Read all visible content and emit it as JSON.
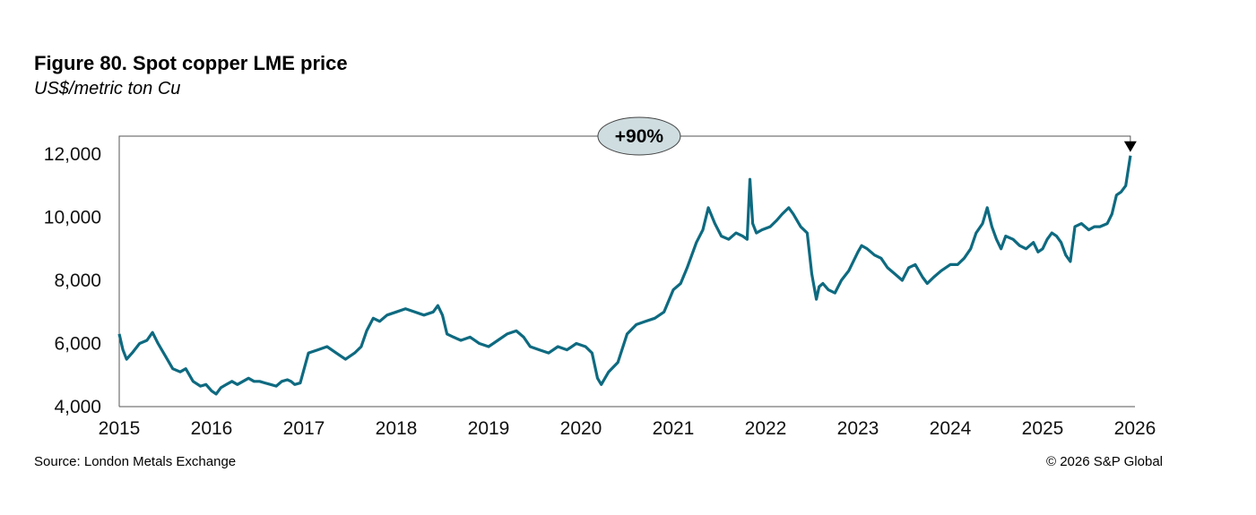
{
  "header": {
    "title": "Figure 80. Spot copper LME price",
    "subtitle": "US$/metric ton Cu"
  },
  "footer": {
    "source": "Source: London Metals Exchange",
    "copyright": "© 2026 S&P Global"
  },
  "colors": {
    "line": "#0e6a80",
    "axis": "#555555",
    "badge_fill": "#cfdde0",
    "badge_stroke": "#444444",
    "marker": "#000000"
  },
  "chart_data": {
    "type": "line",
    "title": "Figure 80. Spot copper LME price",
    "subtitle": "US$/metric ton Cu",
    "xlim": [
      2015.0,
      2026.0
    ],
    "ylim": [
      4000,
      12000
    ],
    "yticks": [
      4000,
      6000,
      8000,
      10000,
      12000
    ],
    "ytick_labels": [
      "4,000",
      "6,000",
      "8,000",
      "10,000",
      "12,000"
    ],
    "xticks": [
      2015,
      2016,
      2017,
      2018,
      2019,
      2020,
      2021,
      2022,
      2023,
      2024,
      2025,
      2026
    ],
    "xtick_labels": [
      "2015",
      "2016",
      "2017",
      "2018",
      "2019",
      "2020",
      "2021",
      "2022",
      "2023",
      "2024",
      "2025",
      "2026"
    ],
    "grid": false,
    "annotation": {
      "label": "+90%",
      "from": [
        2015.0,
        6300
      ],
      "to": [
        2025.95,
        11950
      ]
    },
    "series": [
      {
        "x": [
          2015.0,
          2015.04,
          2015.08,
          2015.14,
          2015.22,
          2015.3,
          2015.36,
          2015.42,
          2015.5,
          2015.58,
          2015.66,
          2015.72,
          2015.8,
          2015.88,
          2015.94,
          2016.0,
          2016.05,
          2016.1,
          2016.16,
          2016.22,
          2016.28,
          2016.34,
          2016.4,
          2016.46,
          2016.52,
          2016.58,
          2016.64,
          2016.7,
          2016.76,
          2016.82,
          2016.86,
          2016.9,
          2016.96,
          2017.05,
          2017.15,
          2017.25,
          2017.35,
          2017.45,
          2017.55,
          2017.62,
          2017.68,
          2017.75,
          2017.82,
          2017.9,
          2018.0,
          2018.1,
          2018.2,
          2018.3,
          2018.4,
          2018.45,
          2018.5,
          2018.55,
          2018.62,
          2018.7,
          2018.8,
          2018.9,
          2019.0,
          2019.1,
          2019.2,
          2019.3,
          2019.38,
          2019.45,
          2019.55,
          2019.65,
          2019.75,
          2019.85,
          2019.95,
          2020.05,
          2020.12,
          2020.18,
          2020.22,
          2020.25,
          2020.3,
          2020.4,
          2020.5,
          2020.6,
          2020.7,
          2020.8,
          2020.9,
          2021.0,
          2021.08,
          2021.15,
          2021.25,
          2021.32,
          2021.38,
          2021.45,
          2021.52,
          2021.6,
          2021.68,
          2021.75,
          2021.8,
          2021.83,
          2021.86,
          2021.9,
          2021.96,
          2022.05,
          2022.12,
          2022.18,
          2022.25,
          2022.3,
          2022.38,
          2022.45,
          2022.5,
          2022.55,
          2022.58,
          2022.62,
          2022.68,
          2022.75,
          2022.82,
          2022.9,
          2023.0,
          2023.04,
          2023.1,
          2023.18,
          2023.25,
          2023.32,
          2023.4,
          2023.48,
          2023.55,
          2023.62,
          2023.7,
          2023.75,
          2023.82,
          2023.9,
          2024.0,
          2024.08,
          2024.15,
          2024.22,
          2024.28,
          2024.35,
          2024.4,
          2024.45,
          2024.5,
          2024.55,
          2024.6,
          2024.68,
          2024.75,
          2024.82,
          2024.9,
          2024.95,
          2025.0,
          2025.05,
          2025.1,
          2025.15,
          2025.2,
          2025.25,
          2025.3,
          2025.35,
          2025.42,
          2025.5,
          2025.56,
          2025.62,
          2025.7,
          2025.75,
          2025.8,
          2025.85,
          2025.9,
          2025.95
        ],
        "y": [
          6300,
          5800,
          5500,
          5700,
          6000,
          6100,
          6350,
          6000,
          5600,
          5200,
          5100,
          5200,
          4800,
          4650,
          4700,
          4500,
          4400,
          4600,
          4700,
          4800,
          4700,
          4800,
          4900,
          4800,
          4800,
          4750,
          4700,
          4650,
          4800,
          4850,
          4800,
          4700,
          4750,
          5700,
          5800,
          5900,
          5700,
          5500,
          5700,
          5900,
          6400,
          6800,
          6700,
          6900,
          7000,
          7100,
          7000,
          6900,
          7000,
          7200,
          6900,
          6300,
          6200,
          6100,
          6200,
          6000,
          5900,
          6100,
          6300,
          6400,
          6200,
          5900,
          5800,
          5700,
          5900,
          5800,
          6000,
          5900,
          5700,
          4900,
          4700,
          4850,
          5100,
          5400,
          6300,
          6600,
          6700,
          6800,
          7000,
          7700,
          7900,
          8400,
          9200,
          9600,
          10300,
          9800,
          9400,
          9300,
          9500,
          9400,
          9300,
          11200,
          9800,
          9500,
          9600,
          9700,
          9900,
          10100,
          10300,
          10100,
          9700,
          9500,
          8200,
          7400,
          7800,
          7900,
          7700,
          7600,
          8000,
          8300,
          8900,
          9100,
          9000,
          8800,
          8700,
          8400,
          8200,
          8000,
          8400,
          8500,
          8100,
          7900,
          8100,
          8300,
          8500,
          8500,
          8700,
          9000,
          9500,
          9800,
          10300,
          9700,
          9300,
          9000,
          9400,
          9300,
          9100,
          9000,
          9200,
          8900,
          9000,
          9300,
          9500,
          9400,
          9200,
          8800,
          8600,
          9700,
          9800,
          9600,
          9700,
          9700,
          9800,
          10100,
          10700,
          10800,
          11000,
          11950
        ]
      }
    ]
  }
}
